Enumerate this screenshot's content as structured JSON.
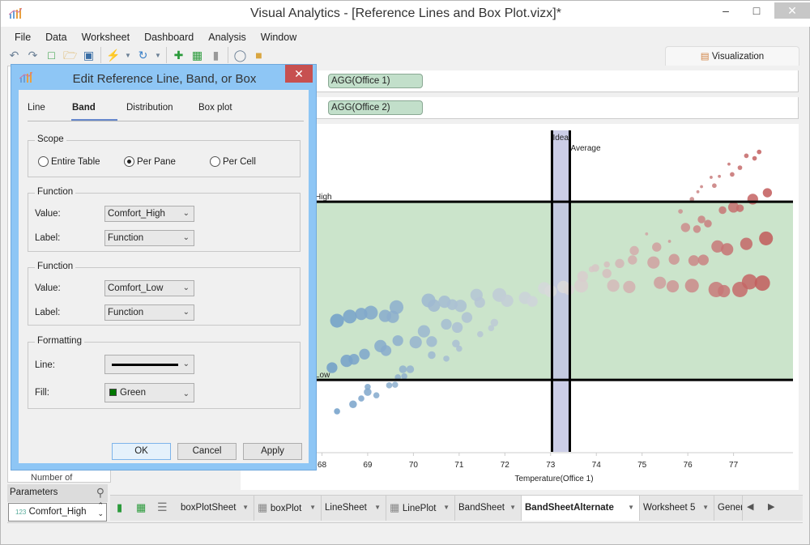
{
  "window": {
    "title": "Visual Analytics - [Reference Lines and Box Plot.vizx]*",
    "minimize": "–",
    "maximize": "□",
    "close": "✕"
  },
  "menu": [
    "File",
    "Data",
    "Worksheet",
    "Dashboard",
    "Analysis",
    "Window"
  ],
  "toolbar_icons": [
    "undo-icon",
    "redo-icon",
    "new-icon",
    "open-icon",
    "save-icon",
    "connect-icon",
    "refresh-icon",
    "add-chart-icon",
    "add-table-icon",
    "bar-chart-icon",
    "lasso-icon",
    "dashboard-icon"
  ],
  "viz_tab": "Visualization",
  "shelves": {
    "columns": "AGG(Office 1)",
    "rows": "AGG(Office 2)",
    "pill_color": "#c2dfca"
  },
  "dialog": {
    "title": "Edit Reference Line, Band, or Box",
    "tabs": [
      "Line",
      "Band",
      "Distribution",
      "Box plot"
    ],
    "active_tab": "Band",
    "scope": {
      "label": "Scope",
      "options": [
        "Entire Table",
        "Per Pane",
        "Per Cell"
      ],
      "selected": "Per Pane"
    },
    "band_from": {
      "label": "Function",
      "value_label": "Value:",
      "value": "Comfort_High",
      "label_label": "Label:"
    },
    "band_to": {
      "label": "Function",
      "value_label": "Value:",
      "value": "Comfort_Low",
      "label_label": "Label:"
    },
    "formatting": {
      "label": "Formatting",
      "line_label": "Line:",
      "fill_label": "Fill:",
      "fill": "Green",
      "fill_color": "#007700"
    },
    "buttons": {
      "ok": "OK",
      "cancel": "Cancel",
      "apply": "Apply"
    }
  },
  "left_panel": {
    "partial_item": "Number of",
    "parameters_label": "Parameters",
    "parameter": "Comfort_High",
    "parameter_type": "123"
  },
  "sheet_tabs": [
    {
      "label": "boxPlotSheet",
      "icon": "none"
    },
    {
      "label": "boxPlot",
      "icon": "grid"
    },
    {
      "label": "LineSheet",
      "icon": "none"
    },
    {
      "label": "LinePlot",
      "icon": "grid"
    },
    {
      "label": "BandSheet",
      "icon": "none"
    },
    {
      "label": "BandSheetAlternate",
      "icon": "none",
      "active": true
    },
    {
      "label": "Worksheet 5",
      "icon": "none"
    },
    {
      "label": "Gener",
      "icon": "none"
    }
  ],
  "chart_data": {
    "type": "scatter",
    "xlabel": "Temperature(Office 1)",
    "ylabel": "",
    "xlim": [
      67.85,
      78.3
    ],
    "ylim": [
      0,
      100
    ],
    "xticks": [
      68,
      69,
      70,
      71,
      72,
      73,
      74,
      75,
      76,
      77
    ],
    "reference_band": {
      "from_label": "High",
      "to_label": "Low",
      "from": 77.8,
      "to": 22.4,
      "fill": "#cbe4cb",
      "line_color": "#000000"
    },
    "ideal_band": {
      "label": "Ideal",
      "from": 73.03,
      "to": 73.42,
      "fill": "#c3c5e3"
    },
    "average_line": {
      "label": "Average",
      "x": 73.42
    },
    "color_scale": {
      "low": "#6e9dc8",
      "mid": "#dcdcdc",
      "high": "#c25b5b"
    },
    "points": [
      [
        68.33,
        40.8,
        9
      ],
      [
        68.61,
        42.1,
        9
      ],
      [
        68.86,
        42.9,
        8
      ],
      [
        69.07,
        43.3,
        9
      ],
      [
        69.38,
        42.3,
        8
      ],
      [
        69.63,
        45,
        9
      ],
      [
        69.55,
        42,
        8
      ],
      [
        70.33,
        47.1,
        9
      ],
      [
        70.45,
        45.5,
        8
      ],
      [
        70.68,
        46.7,
        8
      ],
      [
        70.85,
        45.8,
        7
      ],
      [
        71.03,
        45.4,
        8
      ],
      [
        71.38,
        48.8,
        8
      ],
      [
        71.45,
        46.5,
        7
      ],
      [
        71.88,
        48.8,
        9
      ],
      [
        72.05,
        47,
        8
      ],
      [
        72.44,
        47.9,
        8
      ],
      [
        72.6,
        46.8,
        7
      ],
      [
        72.86,
        50.9,
        8
      ],
      [
        73.0,
        50,
        8
      ],
      [
        73.28,
        51.3,
        8
      ],
      [
        73.4,
        50.5,
        7
      ],
      [
        68.22,
        26.2,
        7
      ],
      [
        68.54,
        28.3,
        8
      ],
      [
        68.7,
        28.8,
        7
      ],
      [
        68.93,
        30.4,
        7
      ],
      [
        69.28,
        32.9,
        8
      ],
      [
        69.4,
        31.5,
        7
      ],
      [
        69.66,
        34.6,
        7
      ],
      [
        70.05,
        34.1,
        8
      ],
      [
        70.23,
        37.5,
        8
      ],
      [
        70.4,
        34.3,
        7
      ],
      [
        70.72,
        39.7,
        7
      ],
      [
        71.17,
        41.8,
        7
      ],
      [
        70.96,
        38.7,
        7
      ],
      [
        70.4,
        30.1,
        5
      ],
      [
        70.72,
        29,
        4
      ],
      [
        70.93,
        33.7,
        5
      ],
      [
        71.0,
        32.1,
        4
      ],
      [
        71.46,
        36.6,
        4
      ],
      [
        71.77,
        40.2,
        5
      ],
      [
        71.7,
        38.5,
        4
      ],
      [
        69.77,
        25.7,
        5
      ],
      [
        69.93,
        25.7,
        5
      ],
      [
        68.33,
        12.6,
        4
      ],
      [
        68.68,
        14.8,
        5
      ],
      [
        68.86,
        16.6,
        4
      ],
      [
        69.0,
        18.6,
        5
      ],
      [
        69.19,
        17.6,
        4
      ],
      [
        69.47,
        20.7,
        4
      ],
      [
        69.0,
        20.2,
        4
      ],
      [
        69.6,
        20.9,
        4
      ],
      [
        69.66,
        23.2,
        4
      ],
      [
        69.8,
        23.5,
        4
      ],
      [
        73.67,
        51.7,
        9
      ],
      [
        73.7,
        54.6,
        7
      ],
      [
        73.9,
        56.8,
        4
      ],
      [
        73.98,
        57.2,
        5
      ],
      [
        74.23,
        55.5,
        6
      ],
      [
        74.23,
        58.3,
        4
      ],
      [
        74.51,
        58.6,
        6
      ],
      [
        74.37,
        51.7,
        8
      ],
      [
        74.79,
        59.7,
        6
      ],
      [
        74.83,
        62.6,
        6
      ],
      [
        74.72,
        51.3,
        8
      ],
      [
        75.25,
        58.9,
        8
      ],
      [
        75.32,
        63.7,
        6
      ],
      [
        75.39,
        52.6,
        8
      ],
      [
        75.67,
        51.5,
        8
      ],
      [
        75.7,
        59.9,
        7
      ],
      [
        76.09,
        51.7,
        9
      ],
      [
        76.13,
        59.5,
        7
      ],
      [
        76.34,
        59.7,
        7
      ],
      [
        76.62,
        50.5,
        10
      ],
      [
        76.65,
        63.9,
        8
      ],
      [
        76.79,
        50,
        8
      ],
      [
        76.86,
        63,
        8
      ],
      [
        77.14,
        50.5,
        10
      ],
      [
        77.28,
        64.7,
        8
      ],
      [
        77.35,
        52.9,
        10
      ],
      [
        77.63,
        52.5,
        10
      ],
      [
        77.71,
        66.4,
        9
      ],
      [
        75.84,
        74.8,
        3
      ],
      [
        75.95,
        69.8,
        6
      ],
      [
        76.2,
        69.3,
        5
      ],
      [
        76.3,
        72.3,
        5
      ],
      [
        76.44,
        71,
        5
      ],
      [
        76.09,
        78.6,
        3
      ],
      [
        76.76,
        75.2,
        5
      ],
      [
        77.0,
        76.1,
        7
      ],
      [
        77.14,
        75.8,
        5
      ],
      [
        77.42,
        78.6,
        7
      ],
      [
        77.74,
        80.6,
        6
      ],
      [
        76.58,
        82.8,
        3
      ],
      [
        76.97,
        86.3,
        3
      ],
      [
        77.14,
        88.4,
        3
      ],
      [
        77.28,
        92.1,
        3
      ],
      [
        77.56,
        93.3,
        3
      ],
      [
        76.9,
        89.5,
        2
      ],
      [
        76.69,
        85.7,
        2
      ],
      [
        76.51,
        85.4,
        2
      ],
      [
        76.3,
        82.5,
        2
      ],
      [
        76.22,
        80.9,
        2
      ],
      [
        77.46,
        91.3,
        3
      ],
      [
        75.6,
        65.5,
        2
      ],
      [
        75.1,
        67.8,
        2
      ]
    ]
  }
}
